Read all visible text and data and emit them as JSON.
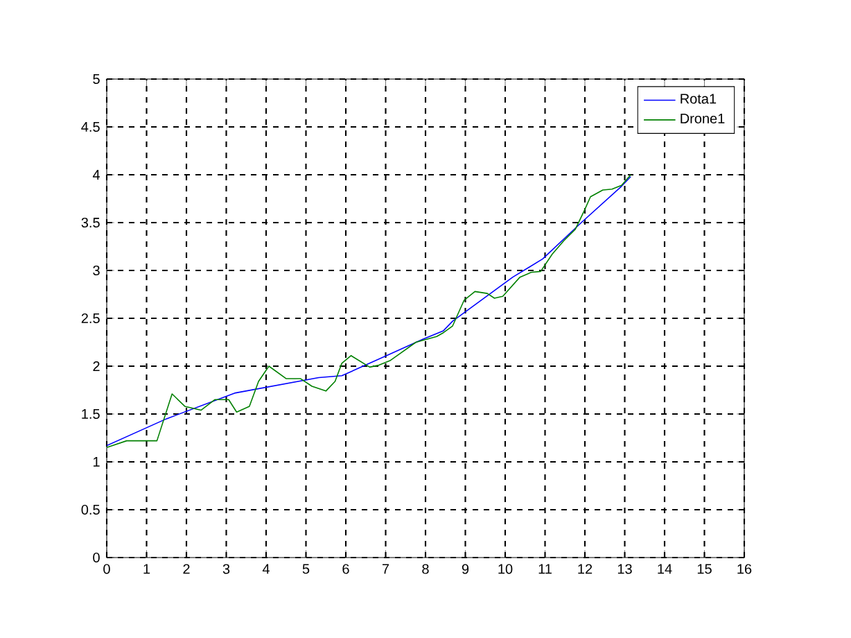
{
  "chart_data": {
    "type": "line",
    "series": [
      {
        "name": "Rota1",
        "color": "#0000ff",
        "x": [
          0,
          1.5,
          3.23,
          5.32,
          5.9,
          7.93,
          8.45,
          8.68,
          10.19,
          10.94,
          11.91,
          12.92,
          13.15
        ],
        "values": [
          1.17,
          1.45,
          1.72,
          1.88,
          1.9,
          2.28,
          2.37,
          2.47,
          2.93,
          3.12,
          3.5,
          3.88,
          3.98
        ]
      },
      {
        "name": "Drone1",
        "color": "#008000",
        "x": [
          0,
          0.5,
          1.26,
          1.64,
          1.96,
          2.37,
          2.71,
          3.06,
          3.26,
          3.58,
          3.81,
          4.07,
          4.5,
          4.86,
          5.15,
          5.5,
          5.73,
          5.9,
          6.13,
          6.6,
          6.83,
          7.12,
          7.76,
          8.28,
          8.45,
          8.68,
          8.97,
          9.24,
          9.55,
          9.73,
          9.94,
          10.37,
          10.65,
          10.89,
          11.18,
          11.47,
          11.76,
          11.99,
          12.14,
          12.45,
          12.68,
          12.92,
          13.15
        ],
        "values": [
          1.15,
          1.22,
          1.22,
          1.71,
          1.58,
          1.54,
          1.65,
          1.65,
          1.52,
          1.58,
          1.84,
          2.0,
          1.87,
          1.87,
          1.79,
          1.74,
          1.84,
          2.03,
          2.11,
          1.99,
          2.01,
          2.06,
          2.25,
          2.31,
          2.35,
          2.42,
          2.69,
          2.78,
          2.76,
          2.71,
          2.73,
          2.93,
          2.98,
          2.99,
          3.17,
          3.31,
          3.43,
          3.63,
          3.77,
          3.84,
          3.85,
          3.89,
          4.0
        ]
      }
    ],
    "xlim": [
      0,
      16
    ],
    "xticks": [
      0,
      1,
      2,
      3,
      4,
      5,
      6,
      7,
      8,
      9,
      10,
      11,
      12,
      13,
      14,
      15,
      16
    ],
    "ylim": [
      0,
      5
    ],
    "yticks": [
      0,
      0.5,
      1,
      1.5,
      2,
      2.5,
      3,
      3.5,
      4,
      4.5,
      5
    ],
    "grid": true,
    "legend": "top right",
    "line_style": "solid",
    "marker": "none"
  }
}
